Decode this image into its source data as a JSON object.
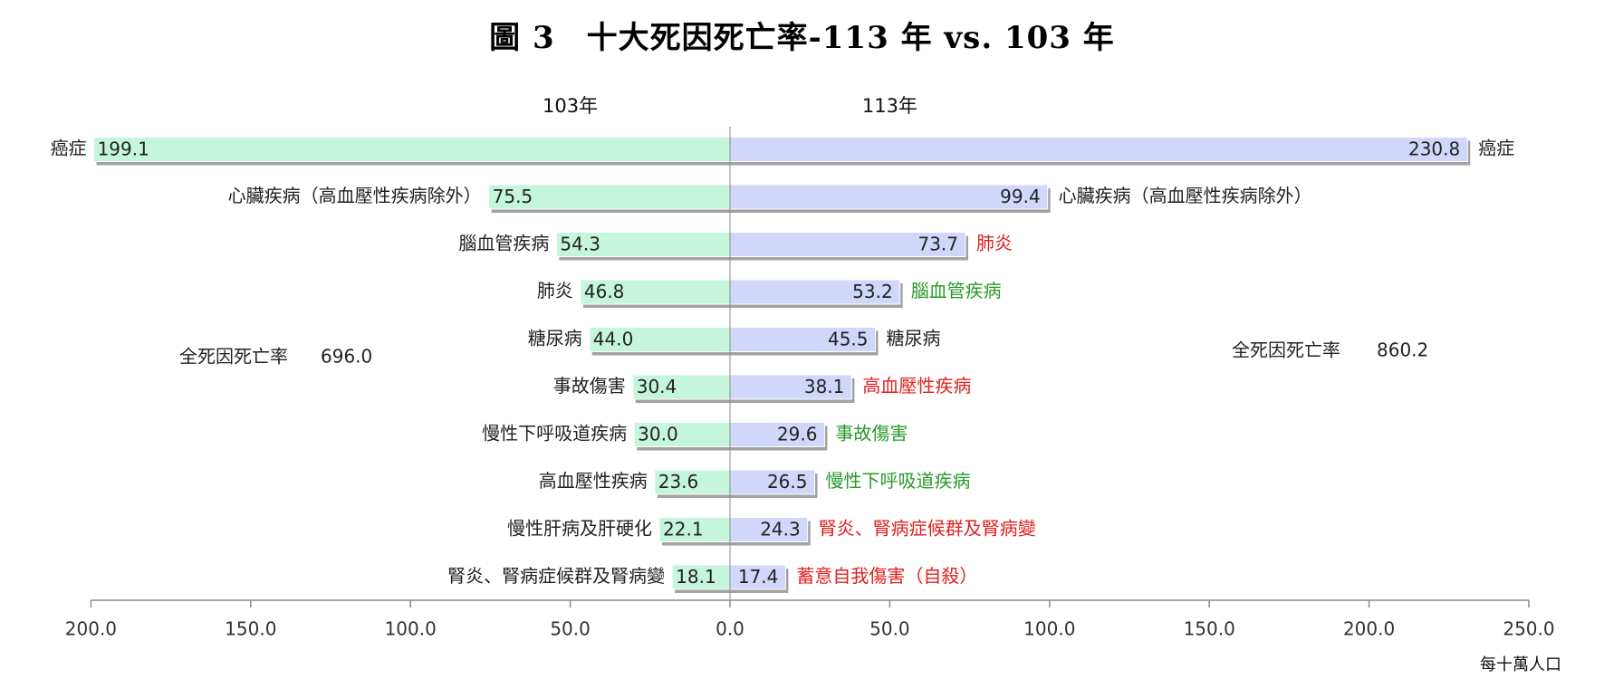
{
  "chart_data": {
    "type": "bar",
    "title": "圖 3　十大死因死亡率-113 年 vs. 103 年",
    "unit_label": "每十萬人口",
    "xlim": [
      -200,
      250
    ],
    "x_ticks": [
      "200.0",
      "150.0",
      "100.0",
      "50.0",
      "0.0",
      "50.0",
      "100.0",
      "150.0",
      "200.0",
      "250.0"
    ],
    "x_tick_values": [
      -200,
      -150,
      -100,
      -50,
      0,
      50,
      100,
      150,
      200,
      250
    ],
    "left": {
      "name": "103年",
      "color": "#c6f5dd",
      "total_label": "全死因死亡率",
      "total_value": "696.0",
      "categories": [
        "癌症",
        "心臟疾病（高血壓性疾病除外）",
        "腦血管疾病",
        "肺炎",
        "糖尿病",
        "事故傷害",
        "慢性下呼吸道疾病",
        "高血壓性疾病",
        "慢性肝病及肝硬化",
        "腎炎、腎病症候群及腎病變"
      ],
      "values": [
        199.1,
        75.5,
        54.3,
        46.8,
        44.0,
        30.4,
        30.0,
        23.6,
        22.1,
        18.1
      ],
      "value_labels": [
        "199.1",
        "75.5",
        "54.3",
        "46.8",
        "44.0",
        "30.4",
        "30.0",
        "23.6",
        "22.1",
        "18.1"
      ]
    },
    "right": {
      "name": "113年",
      "color": "#d1d7fa",
      "total_label": "全死因死亡率",
      "total_value": "860.2",
      "categories": [
        "癌症",
        "心臟疾病（高血壓性疾病除外）",
        "肺炎",
        "腦血管疾病",
        "糖尿病",
        "高血壓性疾病",
        "事故傷害",
        "慢性下呼吸道疾病",
        "腎炎、腎病症候群及腎病變",
        "蓄意自我傷害（自殺）"
      ],
      "values": [
        230.8,
        99.4,
        73.7,
        53.2,
        45.5,
        38.1,
        29.6,
        26.5,
        24.3,
        17.4
      ],
      "value_labels": [
        "230.8",
        "99.4",
        "73.7",
        "53.2",
        "45.5",
        "38.1",
        "29.6",
        "26.5",
        "24.3",
        "17.4"
      ],
      "label_colors": [
        "#222222",
        "#222222",
        "#e02020",
        "#2a9a2a",
        "#222222",
        "#e02020",
        "#2a9a2a",
        "#2a9a2a",
        "#e02020",
        "#e02020"
      ]
    }
  }
}
